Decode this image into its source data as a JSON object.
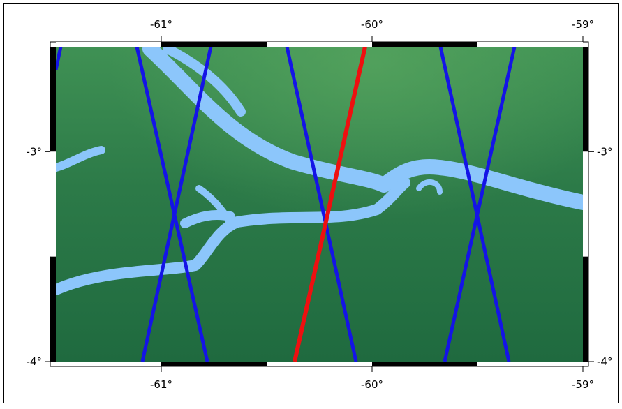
{
  "map": {
    "x_ticks": [
      {
        "value": -61,
        "label": "-61°"
      },
      {
        "value": -60,
        "label": "-60°"
      },
      {
        "value": -59,
        "label": "-59°"
      }
    ],
    "y_ticks": [
      {
        "value": -3,
        "label": "-3°"
      },
      {
        "value": -4,
        "label": "-4°"
      }
    ],
    "xlim": [
      -61.5,
      -59
    ],
    "ylim": [
      -2.5,
      -4
    ]
  }
}
